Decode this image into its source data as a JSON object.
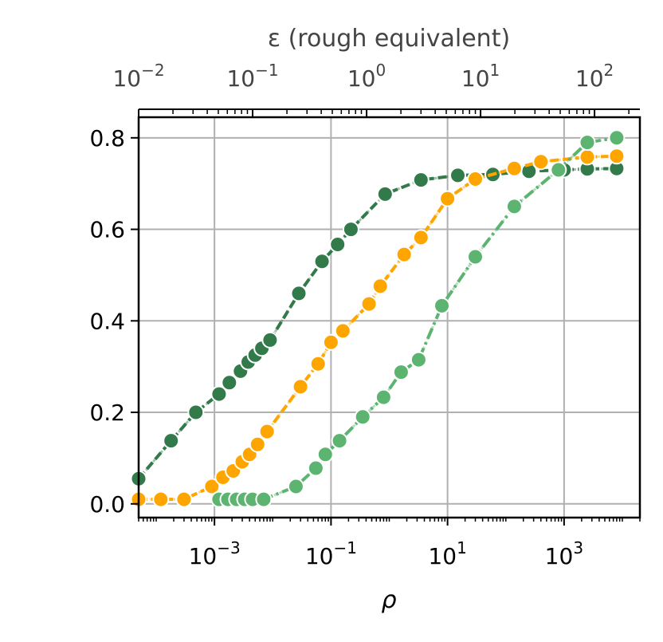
{
  "chart_data": {
    "type": "line",
    "xlabel": "ρ",
    "xscale": "log",
    "xlim": [
      5e-05,
      20000
    ],
    "x_ticks": [
      0.001,
      0.1,
      10,
      1000
    ],
    "x_tick_labels": [
      {
        "base": "10",
        "exp": "−3"
      },
      {
        "base": "10",
        "exp": "−1"
      },
      {
        "base": "10",
        "exp": "1"
      },
      {
        "base": "10",
        "exp": "3"
      }
    ],
    "top_xlabel": "ε (rough equivalent)",
    "top_xscale": "log",
    "top_xlim": [
      0.01,
      250
    ],
    "top_x_ticks": [
      0.01,
      0.1,
      1,
      10,
      100
    ],
    "top_x_tick_labels": [
      {
        "base": "10",
        "exp": "−2"
      },
      {
        "base": "10",
        "exp": "−1"
      },
      {
        "base": "10",
        "exp": "0"
      },
      {
        "base": "10",
        "exp": "1"
      },
      {
        "base": "10",
        "exp": "2"
      }
    ],
    "ylim": [
      -0.03,
      0.845
    ],
    "y_ticks": [
      0.0,
      0.2,
      0.4,
      0.6,
      0.8
    ],
    "y_tick_labels": [
      "0.0",
      "0.2",
      "0.4",
      "0.6",
      "0.8"
    ],
    "grid": true,
    "series": [
      {
        "color": "#327a4a",
        "line_style": "dashed",
        "points": [
          [
            5e-05,
            0.055
          ],
          [
            0.00018,
            0.138
          ],
          [
            0.00048,
            0.2
          ],
          [
            0.0012,
            0.24
          ],
          [
            0.0018,
            0.265
          ],
          [
            0.0028,
            0.29
          ],
          [
            0.0038,
            0.31
          ],
          [
            0.005,
            0.325
          ],
          [
            0.0065,
            0.34
          ],
          [
            0.009,
            0.358
          ],
          [
            0.028,
            0.46
          ],
          [
            0.07,
            0.53
          ],
          [
            0.13,
            0.567
          ],
          [
            0.22,
            0.6
          ],
          [
            0.85,
            0.677
          ],
          [
            3.5,
            0.708
          ],
          [
            15,
            0.718
          ],
          [
            60,
            0.72
          ],
          [
            250,
            0.727
          ],
          [
            1000,
            0.73
          ],
          [
            2500,
            0.732
          ],
          [
            8000,
            0.733
          ]
        ]
      },
      {
        "color": "#ffa500",
        "line_style": "dashed",
        "points": [
          [
            5e-05,
            0.01
          ],
          [
            0.00012,
            0.01
          ],
          [
            0.0003,
            0.01
          ],
          [
            0.0009,
            0.038
          ],
          [
            0.0014,
            0.058
          ],
          [
            0.0021,
            0.072
          ],
          [
            0.003,
            0.092
          ],
          [
            0.004,
            0.108
          ],
          [
            0.0055,
            0.13
          ],
          [
            0.008,
            0.158
          ],
          [
            0.03,
            0.256
          ],
          [
            0.06,
            0.306
          ],
          [
            0.1,
            0.353
          ],
          [
            0.16,
            0.378
          ],
          [
            0.45,
            0.437
          ],
          [
            0.7,
            0.476
          ],
          [
            1.8,
            0.545
          ],
          [
            3.5,
            0.582
          ],
          [
            10,
            0.667
          ],
          [
            30,
            0.71
          ],
          [
            140,
            0.733
          ],
          [
            400,
            0.748
          ],
          [
            2500,
            0.758
          ],
          [
            8000,
            0.76
          ]
        ]
      },
      {
        "color": "#5cb470",
        "line_style": "dashdot",
        "points": [
          [
            0.0012,
            0.01
          ],
          [
            0.0017,
            0.01
          ],
          [
            0.0024,
            0.01
          ],
          [
            0.0033,
            0.01
          ],
          [
            0.0045,
            0.01
          ],
          [
            0.007,
            0.01
          ],
          [
            0.025,
            0.038
          ],
          [
            0.055,
            0.078
          ],
          [
            0.08,
            0.108
          ],
          [
            0.14,
            0.138
          ],
          [
            0.35,
            0.19
          ],
          [
            0.8,
            0.233
          ],
          [
            1.6,
            0.288
          ],
          [
            3.2,
            0.315
          ],
          [
            8,
            0.433
          ],
          [
            30,
            0.54
          ],
          [
            140,
            0.65
          ],
          [
            800,
            0.73
          ],
          [
            2500,
            0.79
          ],
          [
            8000,
            0.8
          ]
        ]
      }
    ]
  }
}
